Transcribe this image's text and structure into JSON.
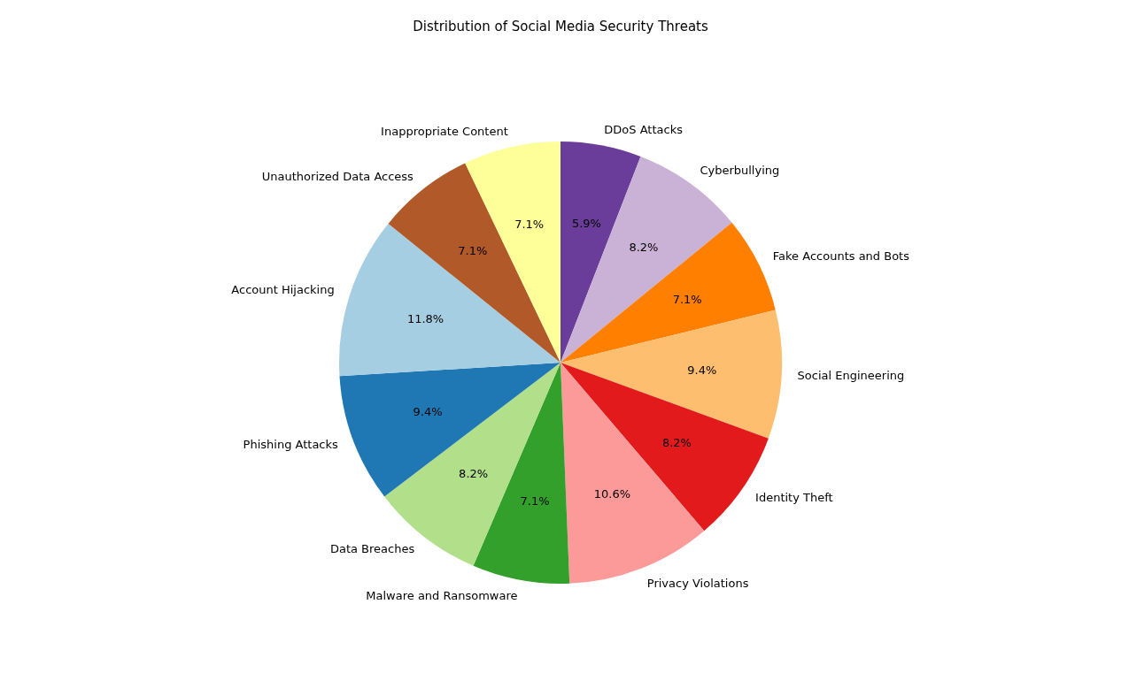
{
  "chart_data": {
    "type": "pie",
    "title": "Distribution of Social Media Security Threats",
    "categories": [
      "DDoS Attacks",
      "Cyberbullying",
      "Fake Accounts and Bots",
      "Social Engineering",
      "Identity Theft",
      "Privacy Violations",
      "Malware and Ransomware",
      "Data Breaches",
      "Phishing Attacks",
      "Account Hijacking",
      "Unauthorized Data Access",
      "Inappropriate Content"
    ],
    "values": [
      5.9,
      8.2,
      7.1,
      9.4,
      8.2,
      10.6,
      7.1,
      8.2,
      9.4,
      11.8,
      7.1,
      7.1
    ],
    "value_labels": [
      "5.9%",
      "8.2%",
      "7.1%",
      "9.4%",
      "8.2%",
      "10.6%",
      "7.1%",
      "8.2%",
      "9.4%",
      "11.8%",
      "7.1%",
      "7.1%"
    ],
    "colors": [
      "#6a3d9a",
      "#cab2d6",
      "#ff7f00",
      "#fdbf6f",
      "#e31a1c",
      "#fb9a99",
      "#33a02c",
      "#b2df8a",
      "#1f78b4",
      "#a6cee3",
      "#b15928",
      "#ffff99"
    ],
    "legend": false
  }
}
